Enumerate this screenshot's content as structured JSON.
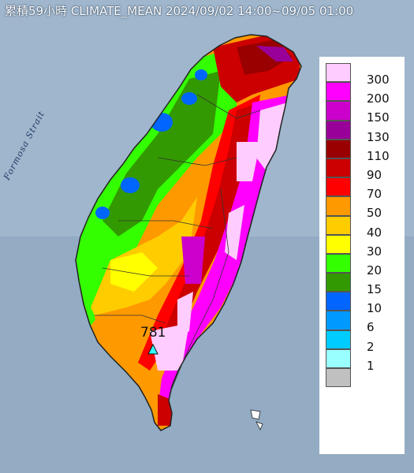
{
  "title": "累積59小時 CLIMATE_MEAN 2024/09/02 14:00~09/05 01:00",
  "strait_label": "Formosa Strait",
  "max_label": "781",
  "legend": [
    {
      "label": "300",
      "color": "#ffccff"
    },
    {
      "label": "200",
      "color": "#ff00ff"
    },
    {
      "label": "150",
      "color": "#cc00cc"
    },
    {
      "label": "130",
      "color": "#990099"
    },
    {
      "label": "110",
      "color": "#990000"
    },
    {
      "label": "90",
      "color": "#cc0000"
    },
    {
      "label": "70",
      "color": "#ff0000"
    },
    {
      "label": "50",
      "color": "#ff9900"
    },
    {
      "label": "40",
      "color": "#ffcc00"
    },
    {
      "label": "30",
      "color": "#ffff00"
    },
    {
      "label": "20",
      "color": "#33ff00"
    },
    {
      "label": "15",
      "color": "#339900"
    },
    {
      "label": "10",
      "color": "#0066ff"
    },
    {
      "label": "6",
      "color": "#0099ff"
    },
    {
      "label": "2",
      "color": "#00ccff"
    },
    {
      "label": "1",
      "color": "#99ffff"
    },
    {
      "label": "",
      "color": "#c0c0c0"
    }
  ]
}
